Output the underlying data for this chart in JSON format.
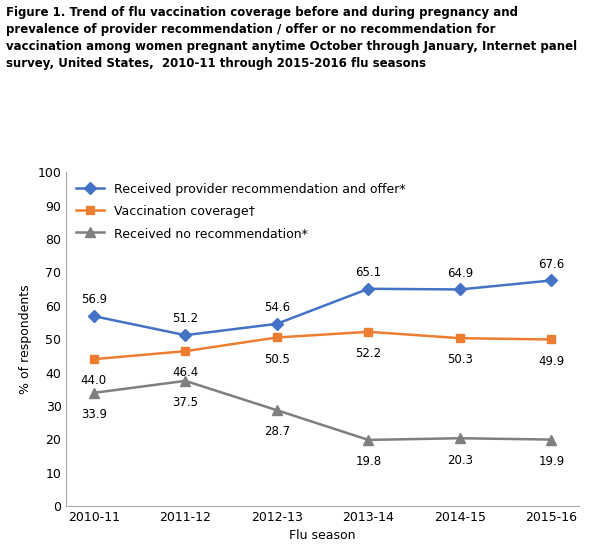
{
  "seasons": [
    "2010-11",
    "2011-12",
    "2012-13",
    "2013-14",
    "2014-15",
    "2015-16"
  ],
  "blue_line": [
    56.9,
    51.2,
    54.6,
    65.1,
    64.9,
    67.6
  ],
  "orange_line": [
    44.0,
    46.4,
    50.5,
    52.2,
    50.3,
    49.9
  ],
  "gray_line": [
    33.9,
    37.5,
    28.7,
    19.8,
    20.3,
    19.9
  ],
  "blue_color": "#4472C4",
  "orange_color": "#ED7D31",
  "gray_color": "#7F7F7F",
  "blue_label": "Received provider recommendation and offer*",
  "orange_label": "Vaccination coverage†",
  "gray_label": "Received no recommendation*",
  "ylabel": "% of respondents",
  "xlabel": "Flu season",
  "ylim": [
    0,
    100
  ],
  "yticks": [
    0,
    10,
    20,
    30,
    40,
    50,
    60,
    70,
    80,
    90,
    100
  ],
  "title": "Figure 1. Trend of flu vaccination coverage before and during pregnancy and\nprevalence of provider recommendation / offer or no recommendation for\nvaccination among women pregnant anytime October through January, Internet panel\nsurvey, United States,  2010-11 through 2015-2016 flu seasons",
  "title_fontsize": 8.5,
  "label_fontsize": 9,
  "tick_fontsize": 9,
  "legend_fontsize": 9,
  "annotation_fontsize": 8.5,
  "blue_annotation_offset": [
    0,
    6,
    0,
    6,
    0,
    6,
    0,
    6,
    0,
    6,
    0,
    6
  ],
  "orange_annotation_offset": [
    0,
    -12,
    0,
    -12,
    0,
    -12,
    0,
    -12,
    0,
    -12,
    0,
    -12
  ],
  "gray_annotation_offset": [
    0,
    -12,
    0,
    -12,
    0,
    -12,
    0,
    -12,
    0,
    -12,
    0,
    -12
  ]
}
